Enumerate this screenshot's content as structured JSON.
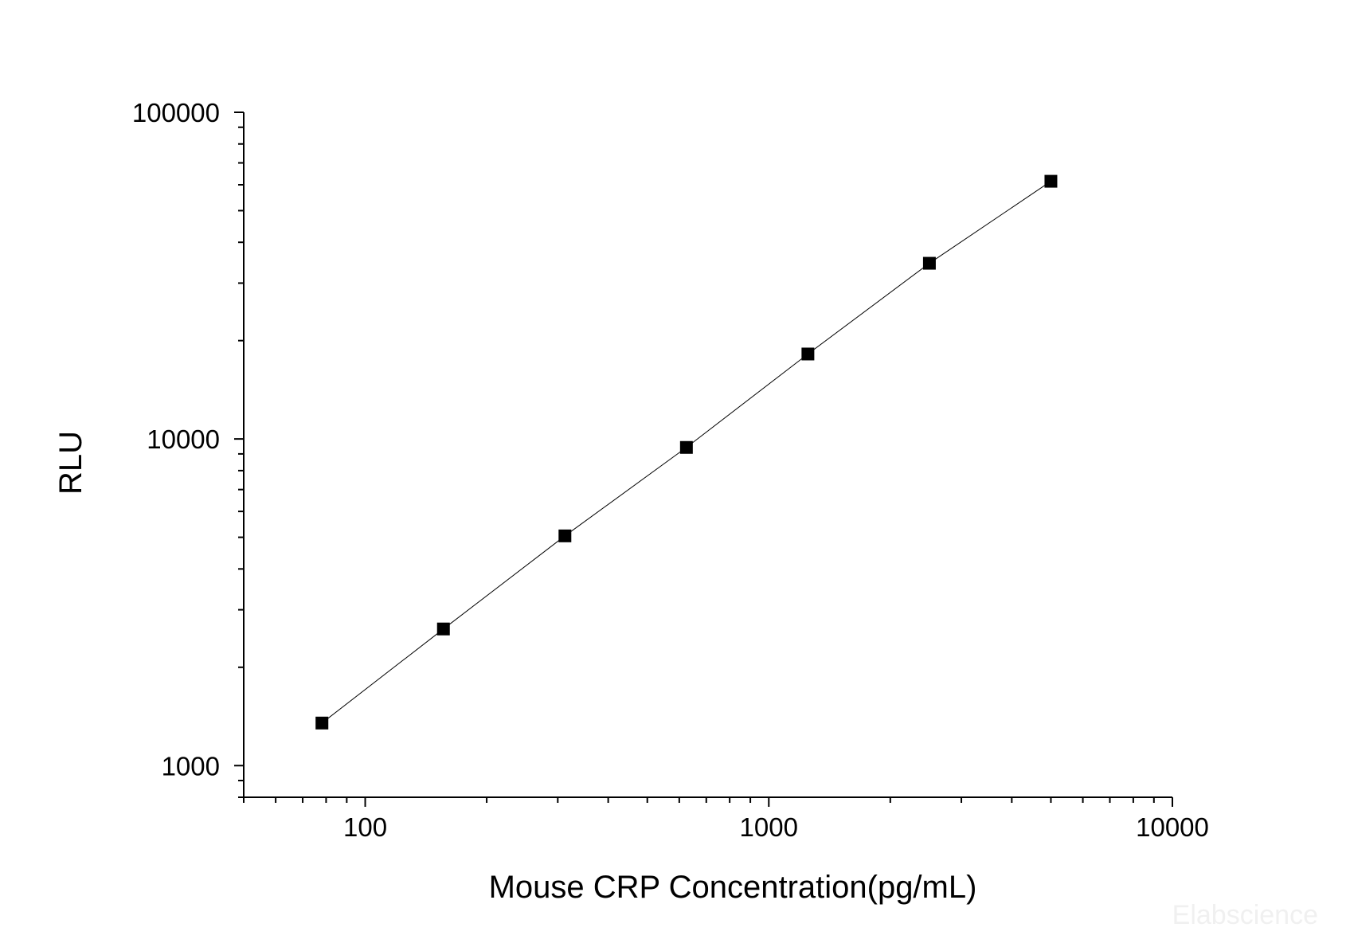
{
  "chart_data": {
    "type": "scatter",
    "title": "",
    "xlabel": "Mouse CRP Concentration(pg/mL)",
    "ylabel": "RLU",
    "xscale": "log",
    "yscale": "log",
    "xlim": [
      50,
      10000
    ],
    "ylim": [
      800,
      100000
    ],
    "x_ticks": [
      100,
      1000,
      10000
    ],
    "x_tick_labels": [
      "100",
      "1000",
      "10000"
    ],
    "y_ticks": [
      1000,
      10000,
      100000
    ],
    "y_tick_labels": [
      "1000",
      "10000",
      "100000"
    ],
    "grid": false,
    "legend": "none",
    "line_connects_points": true,
    "series": [
      {
        "x": [
          78.13,
          156.25,
          312.5,
          625,
          1250,
          2500,
          5000
        ],
        "y": [
          1350,
          2620,
          5050,
          9420,
          18200,
          34500,
          61500
        ],
        "marker": "square",
        "color": "#000000"
      }
    ],
    "watermark": "Elabscience"
  }
}
